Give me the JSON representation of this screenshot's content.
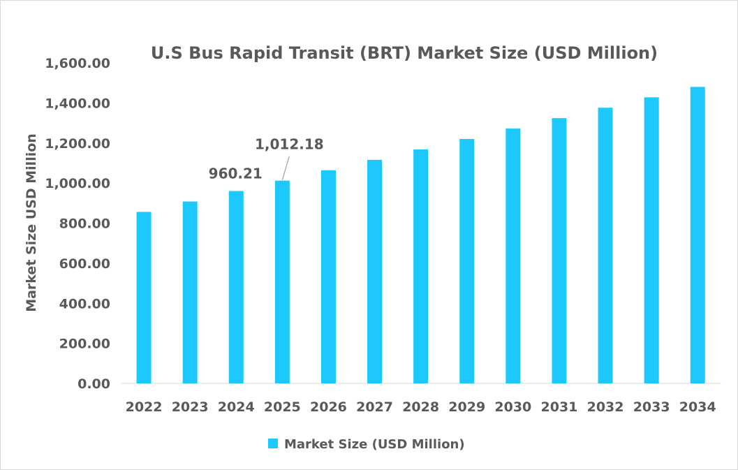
{
  "chart_data": {
    "type": "bar",
    "title": "U.S Bus Rapid Transit (BRT) Market Size (USD Million)",
    "xlabel": "",
    "ylabel": "Market Size USD Million",
    "categories": [
      "2022",
      "2023",
      "2024",
      "2025",
      "2026",
      "2027",
      "2028",
      "2029",
      "2030",
      "2031",
      "2032",
      "2033",
      "2034"
    ],
    "series": [
      {
        "name": "Market Size (USD Million)",
        "values": [
          856,
          908,
          960.21,
          1012.18,
          1064,
          1116,
          1168,
          1220,
          1272,
          1324,
          1376,
          1428,
          1480
        ],
        "color": "#1CC8FC"
      }
    ],
    "data_labels": [
      {
        "category": "2024",
        "text": "960.21"
      },
      {
        "category": "2025",
        "text": "1,012.18"
      }
    ],
    "ylim": [
      0,
      1600
    ],
    "yticks": [
      "0.00",
      "200.00",
      "400.00",
      "600.00",
      "800.00",
      "1,000.00",
      "1,200.00",
      "1,400.00",
      "1,600.00"
    ],
    "grid": false,
    "legend": "bottom"
  }
}
